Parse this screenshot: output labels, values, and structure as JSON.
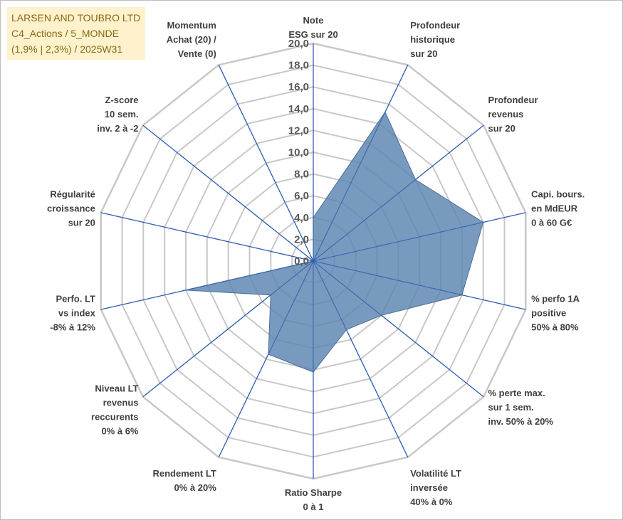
{
  "title": {
    "line1": "LARSEN AND TOUBRO LTD",
    "line2": "C4_Actions / 5_MONDE",
    "line3": "(1,9% | 2,3%) / 2025W31"
  },
  "colors": {
    "series_fill": "#5b84b1",
    "series_stroke": "#4a6f99",
    "axis_line": "#2f5fb3",
    "grid_line": "#c8c8c8",
    "title_bg": "#fdf2cc",
    "title_text": "#8a6a18"
  },
  "chart_data": {
    "type": "radar",
    "title": "LARSEN AND TOUBRO LTD C4_Actions / 5_MONDE (1,9% | 2,3%) / 2025W31",
    "rmin": 0,
    "rmax": 20,
    "tick_step": 2,
    "tick_labels": [
      "0,0",
      "2,0",
      "4,0",
      "6,0",
      "8,0",
      "10,0",
      "12,0",
      "14,0",
      "16,0",
      "18,0",
      "20,0"
    ],
    "grid": true,
    "categories": [
      [
        "Note",
        "ESG sur 20"
      ],
      [
        "Profondeur",
        "historique",
        "sur 20"
      ],
      [
        "Profondeur",
        "revenus",
        "sur 20"
      ],
      [
        "Capi. bours.",
        "en MdEUR",
        "0 à 60 G€"
      ],
      [
        "% perfo 1A",
        "positive",
        "50% à 80%"
      ],
      [
        "% perte max.",
        "sur 1 sem.",
        "inv. 50% à 20%"
      ],
      [
        "Volatilité LT",
        "inversée",
        "40% à 0%"
      ],
      [
        "Ratio Sharpe",
        "0 à 1"
      ],
      [
        "Rendement LT",
        "0% à 20%"
      ],
      [
        "Niveau LT",
        "revenus",
        "reccurents",
        "0% à 6%"
      ],
      [
        "Perfo. LT",
        "vs index",
        "-8% à 12%"
      ],
      [
        "Régularité",
        "croissance",
        "sur 20"
      ],
      [
        "Z-score",
        "10 sem.",
        "inv. 2 à -2"
      ],
      [
        "Momentum",
        "Achat (20) /",
        "Vente (0)"
      ]
    ],
    "series": [
      {
        "values": [
          4.0,
          15.2,
          12.0,
          16.0,
          14.0,
          8.0,
          7.0,
          10.2,
          9.5,
          5.0,
          12.0,
          0.0,
          7.0,
          0.0
        ]
      }
    ]
  }
}
